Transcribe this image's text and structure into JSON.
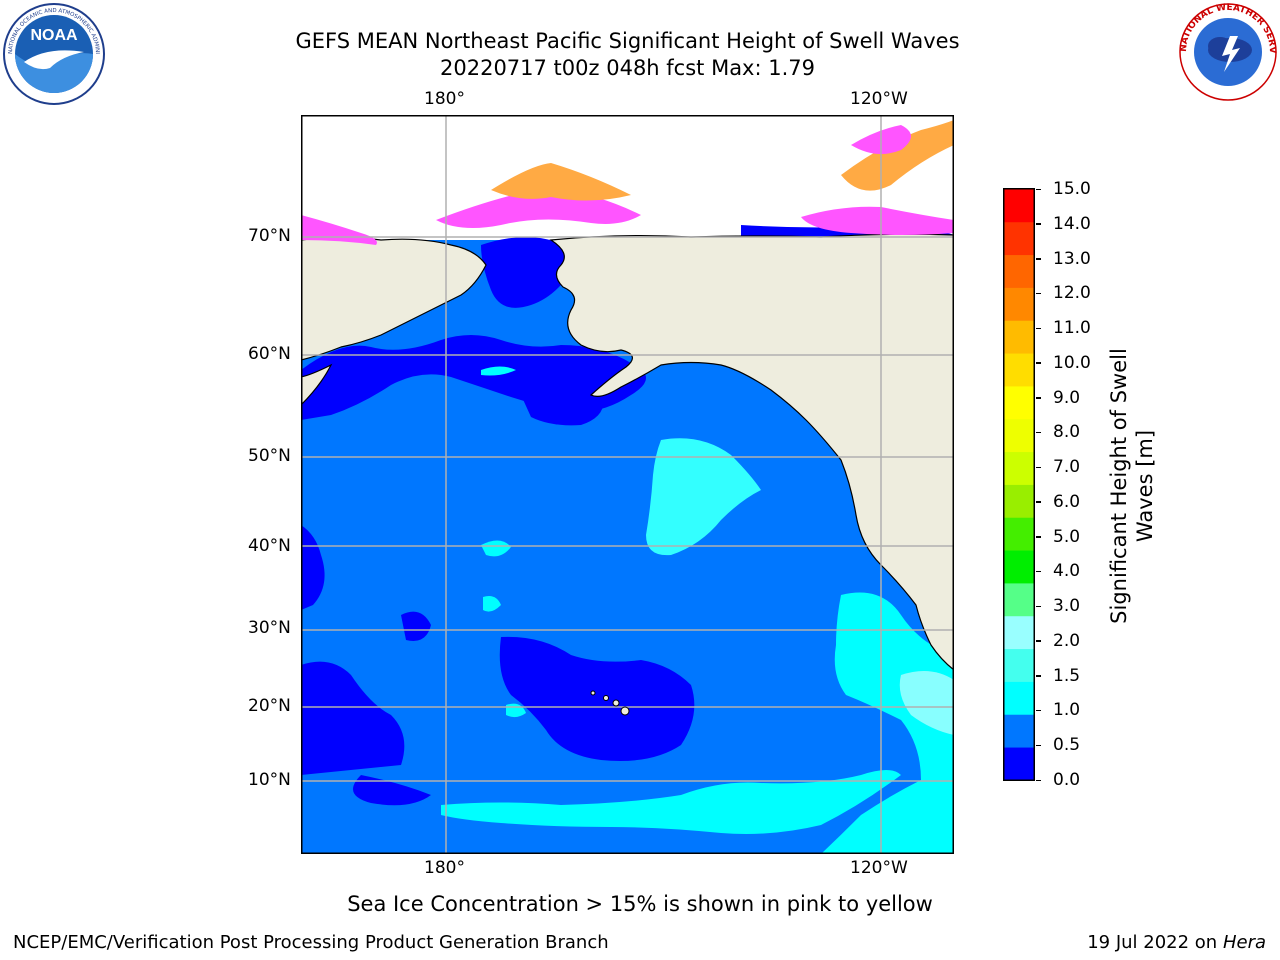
{
  "header": {
    "title_line1": "GEFS MEAN Northeast Pacific Significant Height of Swell Waves",
    "title_line2": "20220717 t00z 048h fcst   Max: 1.79"
  },
  "logos": {
    "left": "noaa-logo",
    "left_text": "NOAA",
    "left_ring_text": "NATIONAL OCEANIC AND ATMOSPHERIC ADMINISTRATION · U.S. DEPARTMENT OF COMMERCE",
    "right": "national-weather-service-logo",
    "right_ring_text": "NATIONAL WEATHER SERVICE"
  },
  "map": {
    "lon_labels_top": [
      "180°",
      "120°W"
    ],
    "lon_labels_bottom": [
      "180°",
      "120°W"
    ],
    "lat_labels": [
      "70°N",
      "60°N",
      "50°N",
      "40°N",
      "30°N",
      "20°N",
      "10°N"
    ],
    "colors": {
      "land": "#eeedde",
      "ocean_0_0_5": "#0000ff",
      "ocean_0_5_1_0": "#0077ff",
      "ocean_1_0_1_5": "#00ffff",
      "ice_pink": "#ff55ff",
      "ice_orange": "#ffaa44",
      "grid": "#b0b0b0"
    }
  },
  "colorbar": {
    "title_line1": "Significant Height of Swell",
    "title_line2": "Waves [m]",
    "ticks": [
      "15.0",
      "14.0",
      "13.0",
      "12.0",
      "11.0",
      "10.0",
      "9.0",
      "8.0",
      "7.0",
      "6.0",
      "5.0",
      "4.0",
      "3.0",
      "2.0",
      "1.5",
      "1.0",
      "0.5",
      "0.0"
    ],
    "colors_bottom_to_top": [
      "#0000ff",
      "#0077ff",
      "#00ffff",
      "#44ffee",
      "#99ffff",
      "#55ff88",
      "#00ee00",
      "#44ee00",
      "#99ee00",
      "#ccff00",
      "#eeff00",
      "#ffff00",
      "#ffdd00",
      "#ffbb00",
      "#ff8800",
      "#ff6600",
      "#ff3300",
      "#ff0000"
    ]
  },
  "caption": "Sea Ice Concentration > 15% is shown in pink to yellow",
  "footer": {
    "left": "NCEP/EMC/Verification Post Processing Product Generation Branch",
    "right_prefix": "19 Jul 2022 on ",
    "right_host": "Hera"
  }
}
